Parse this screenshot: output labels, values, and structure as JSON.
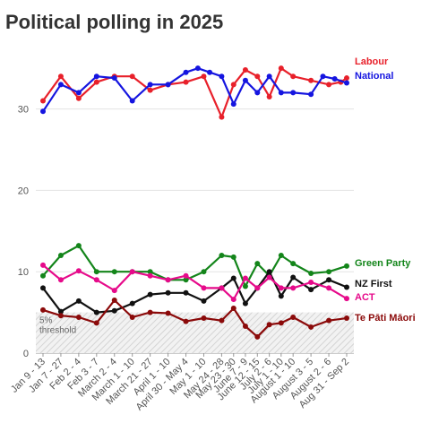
{
  "title": "Political polling in 2025",
  "chart_data": {
    "type": "line",
    "title": "Political polling in 2025",
    "xlabel": "",
    "ylabel": "",
    "ylim": [
      0,
      37
    ],
    "yticks": [
      0,
      10,
      20,
      30
    ],
    "grid": true,
    "legend": "direct labels at right end of lines",
    "categories": [
      "Jan 9 - 13",
      "Jan 7 - 27",
      "Feb 2 - 4",
      "Feb 3 - 7",
      "March 2 - 4",
      "March 1 - 10",
      "March 21 - 27",
      "April 1 - 10",
      "April 30 - May 4",
      "May 1 - 10",
      "May 24 - 28",
      "May 23 - 30",
      "June 7 - 9",
      "June 12 - 15",
      "July 2 - 6",
      "July 1 - 10",
      "August 1 - 10",
      "August 3 - 5",
      "August 2 - 6",
      "Aug 31 - Sep 2"
    ],
    "x_positions": [
      0,
      1,
      2,
      3,
      4,
      5,
      6,
      7,
      8,
      9,
      10,
      10.67,
      11.33,
      12,
      12.67,
      13.33,
      14,
      15,
      16,
      17
    ],
    "threshold": {
      "value": 5,
      "label": [
        "5%",
        "threshold"
      ]
    },
    "series": [
      {
        "name": "Labour",
        "color": "#e8202a",
        "x": [
          0,
          1,
          2,
          3,
          4,
          5,
          6,
          7,
          8,
          9,
          10,
          10.67,
          11.33,
          12,
          12.67,
          13.33,
          14,
          15,
          16,
          16.67,
          17
        ],
        "values": [
          31,
          34,
          31.3,
          33.3,
          34,
          34,
          32.3,
          33,
          33.3,
          34,
          29,
          33,
          34.8,
          34,
          31.5,
          35,
          34,
          33.5,
          33,
          33.3,
          33.8
        ]
      },
      {
        "name": "National",
        "color": "#1515e0",
        "x": [
          0,
          1,
          2,
          3,
          4,
          5,
          6,
          7,
          8,
          8.67,
          9.33,
          10,
          10.67,
          11.33,
          12,
          12.67,
          13.33,
          14,
          15,
          15.67,
          16.33,
          17
        ],
        "values": [
          29.7,
          33,
          32,
          34,
          33.8,
          31,
          33,
          33,
          34.5,
          35,
          34.5,
          34,
          30.6,
          33.5,
          32,
          34,
          32,
          32,
          31.8,
          34,
          33.7,
          33.2
        ]
      },
      {
        "name": "Green Party",
        "color": "#13851a",
        "x": [
          0,
          1,
          2,
          3,
          4,
          5,
          6,
          7,
          8,
          9,
          10,
          10.67,
          11.33,
          12,
          12.67,
          13.33,
          14,
          15,
          16,
          17
        ],
        "values": [
          9.5,
          12,
          13.2,
          10,
          10,
          10,
          10,
          9,
          9,
          10,
          12,
          11.8,
          8.2,
          11,
          9.5,
          12,
          11,
          9.8,
          10,
          10.7
        ]
      },
      {
        "name": "NZ First",
        "color": "#111111",
        "x": [
          0,
          1,
          2,
          3,
          4,
          5,
          6,
          7,
          8,
          9,
          10,
          10.67,
          11.33,
          12,
          12.67,
          13.33,
          14,
          15,
          16,
          17
        ],
        "values": [
          8,
          5.1,
          6.4,
          5,
          5.2,
          6.1,
          7.2,
          7.4,
          7.4,
          6.4,
          8,
          9.2,
          6.1,
          8,
          10,
          7,
          9.3,
          7.8,
          9,
          8.1
        ]
      },
      {
        "name": "ACT",
        "color": "#e60a8a",
        "x": [
          0,
          1,
          2,
          3,
          4,
          5,
          6,
          7,
          8,
          9,
          10,
          10.67,
          11.33,
          12,
          12.67,
          13.33,
          14,
          15,
          16,
          17
        ],
        "values": [
          10.8,
          9,
          10.1,
          9,
          7.7,
          10,
          9.5,
          9,
          9.5,
          8,
          8,
          6.6,
          9.2,
          8,
          9.3,
          8,
          8,
          8.7,
          8,
          6.7
        ]
      },
      {
        "name": "Te Pāti Māori",
        "color": "#8b0a0a",
        "x": [
          0,
          1,
          2,
          3,
          4,
          5,
          6,
          7,
          8,
          9,
          10,
          10.67,
          11.33,
          12,
          12.67,
          13.33,
          14,
          15,
          16,
          17
        ],
        "values": [
          5.3,
          4.6,
          4.4,
          3.7,
          6.5,
          4.4,
          5,
          4.9,
          3.9,
          4.3,
          4,
          5.5,
          3.3,
          2,
          3.5,
          3.7,
          4.4,
          3.2,
          4,
          4.3
        ]
      }
    ]
  }
}
